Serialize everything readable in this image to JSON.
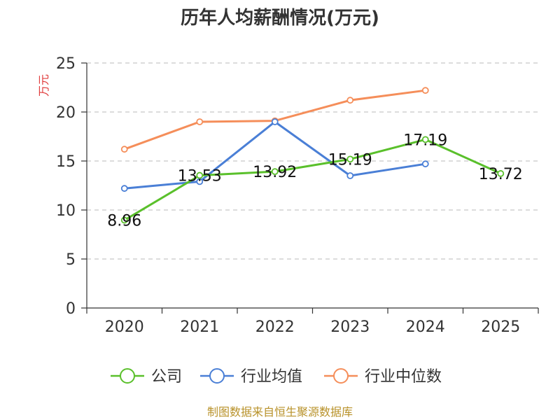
{
  "chart_data": {
    "type": "line",
    "title": "历年人均薪酬情况(万元)",
    "ylabel": "万元",
    "xlabel": "",
    "categories": [
      "2020",
      "2021",
      "2022",
      "2023",
      "2024",
      "2025"
    ],
    "ylim": [
      0,
      25
    ],
    "yticks": [
      "0",
      "5",
      "10",
      "15",
      "20",
      "25"
    ],
    "grid": true,
    "legend_position": "bottom",
    "series": [
      {
        "name": "公司",
        "color": "#5ac02b",
        "values": [
          8.96,
          13.53,
          13.92,
          15.19,
          17.19,
          13.72
        ],
        "labels": [
          "8.96",
          "13.53",
          "13.92",
          "15.19",
          "17.19",
          "13.72"
        ]
      },
      {
        "name": "行业均值",
        "color": "#4a7fd6",
        "values": [
          12.2,
          12.9,
          19.0,
          13.5,
          14.7,
          null
        ]
      },
      {
        "name": "行业中位数",
        "color": "#f58e5a",
        "values": [
          16.2,
          19.0,
          19.1,
          21.2,
          22.2,
          null
        ]
      }
    ]
  },
  "source": "制图数据来自恒生聚源数据库"
}
